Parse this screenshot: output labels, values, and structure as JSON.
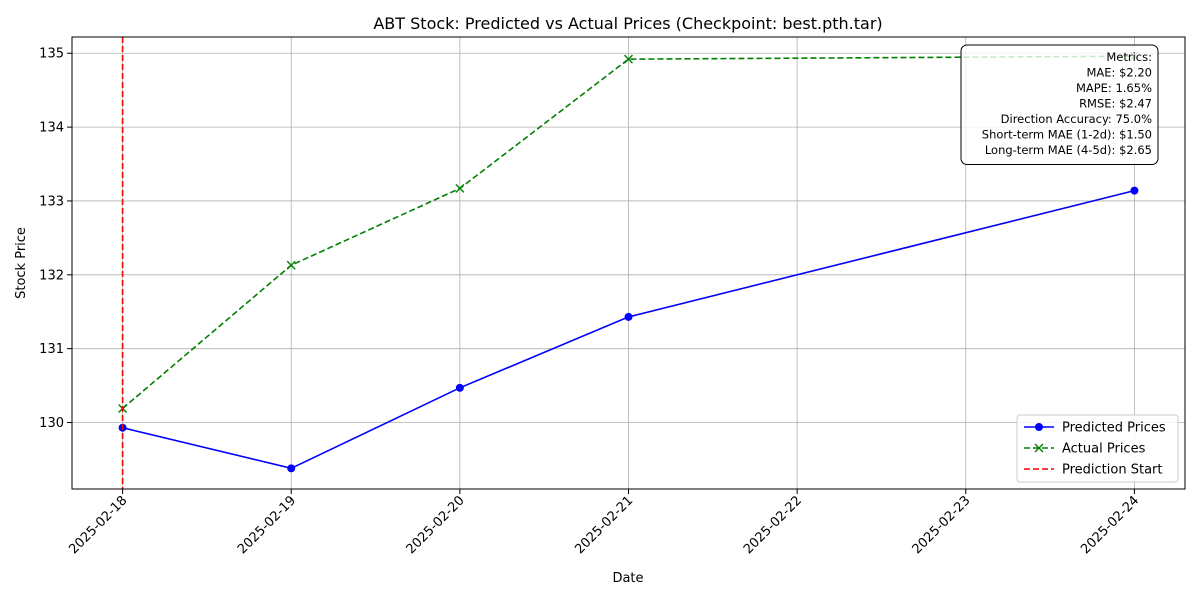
{
  "chart_data": {
    "type": "line",
    "title": "ABT Stock: Predicted vs Actual Prices (Checkpoint: best.pth.tar)",
    "xlabel": "Date",
    "ylabel": "Stock Price",
    "x_ticks": [
      "2025-02-18",
      "2025-02-19",
      "2025-02-20",
      "2025-02-21",
      "2025-02-22",
      "2025-02-23",
      "2025-02-24"
    ],
    "y_ticks": [
      130,
      131,
      132,
      133,
      134,
      135
    ],
    "xlim": [
      "2025-02-17.7",
      "2025-02-24.3"
    ],
    "ylim": [
      129.1,
      135.22
    ],
    "grid": true,
    "legend_position": "bottom-right",
    "series": [
      {
        "name": "Predicted Prices",
        "style": "solid",
        "marker": "circle",
        "color": "#0000ff",
        "x": [
          "2025-02-18",
          "2025-02-19",
          "2025-02-20",
          "2025-02-21",
          "2025-02-24"
        ],
        "y": [
          129.93,
          129.38,
          130.47,
          131.43,
          133.14
        ]
      },
      {
        "name": "Actual Prices",
        "style": "dashed",
        "marker": "x",
        "color": "#008000",
        "x": [
          "2025-02-18",
          "2025-02-19",
          "2025-02-20",
          "2025-02-21",
          "2025-02-24"
        ],
        "y": [
          130.19,
          132.13,
          133.17,
          134.92,
          134.96
        ]
      }
    ],
    "vertical_line": {
      "name": "Prediction Start",
      "x": "2025-02-18",
      "color": "#ff0000",
      "style": "dashed"
    },
    "metrics_box": {
      "position": "top-right",
      "lines": [
        "Metrics:",
        "MAE: $2.20",
        "MAPE: 1.65%",
        "RMSE: $2.47",
        "Direction Accuracy: 75.0%",
        "Short-term MAE (1-2d): $1.50",
        "Long-term MAE (4-5d): $2.65"
      ]
    }
  }
}
